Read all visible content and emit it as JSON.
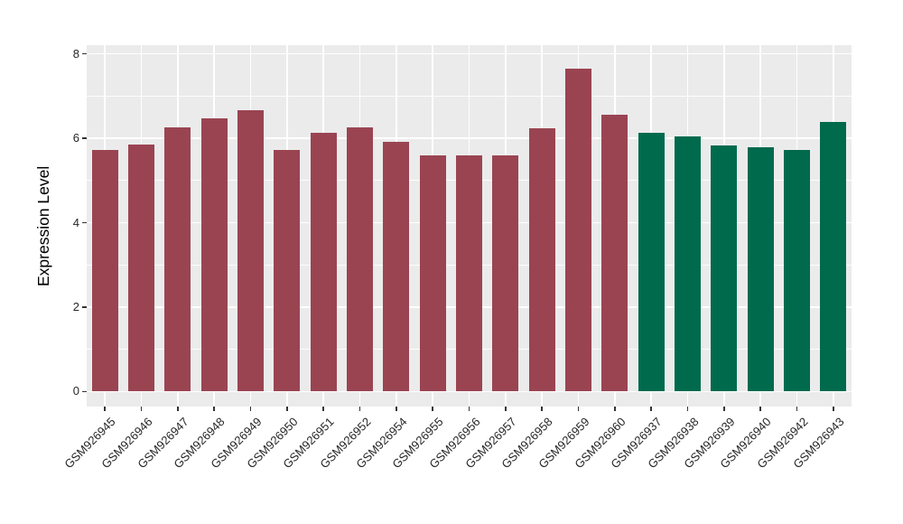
{
  "figure": {
    "background": "#FFFFFF",
    "panel_background": "#EBEBEB",
    "gridline_color": "#FFFFFF",
    "tick_mark_color": "#333333",
    "axis_text_color": "#262626"
  },
  "chart_data": {
    "type": "bar",
    "title": "",
    "xlabel": "",
    "ylabel": "Expression Level",
    "ylim": [
      0,
      8
    ],
    "y_ticks": [
      0,
      2,
      4,
      6,
      8
    ],
    "y_minor_ticks": [
      1,
      3,
      5,
      7
    ],
    "grid": "on",
    "legend": "none",
    "categories": [
      "GSM926945",
      "GSM926946",
      "GSM926947",
      "GSM926948",
      "GSM926949",
      "GSM926950",
      "GSM926951",
      "GSM926952",
      "GSM926954",
      "GSM926955",
      "GSM926956",
      "GSM926957",
      "GSM926958",
      "GSM926959",
      "GSM926960",
      "GSM926937",
      "GSM926938",
      "GSM926939",
      "GSM926940",
      "GSM926942",
      "GSM926943"
    ],
    "values": [
      5.73,
      5.86,
      6.27,
      6.48,
      6.66,
      5.72,
      6.13,
      6.27,
      5.91,
      5.59,
      5.59,
      5.59,
      6.23,
      7.66,
      6.57,
      6.13,
      6.05,
      5.84,
      5.78,
      5.72,
      6.38
    ],
    "groups": [
      "group1",
      "group1",
      "group1",
      "group1",
      "group1",
      "group1",
      "group1",
      "group1",
      "group1",
      "group1",
      "group1",
      "group1",
      "group1",
      "group1",
      "group1",
      "group2",
      "group2",
      "group2",
      "group2",
      "group2",
      "group2"
    ],
    "group_colors": {
      "group1": "#9A4452",
      "group2": "#006A4D"
    }
  }
}
